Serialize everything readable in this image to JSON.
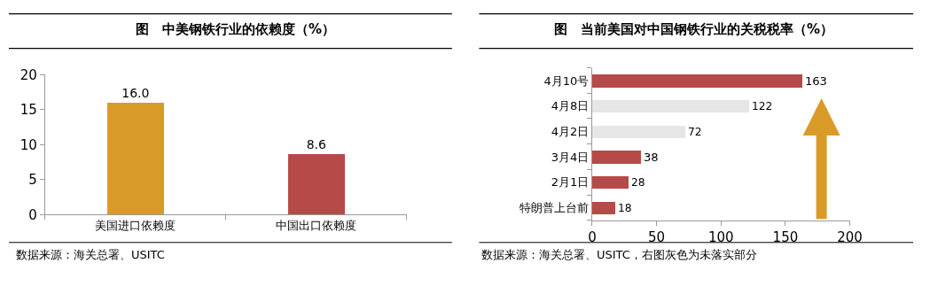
{
  "chart_data": [
    {
      "type": "bar",
      "title": "图　中美钢铁行业的依赖度（%）",
      "categories": [
        "美国进口依赖度",
        "中国出口依赖度"
      ],
      "values": [
        16.0,
        8.6
      ],
      "colors": [
        "#d99b28",
        "#b64a48"
      ],
      "value_labels": [
        "16.0",
        "8.6"
      ],
      "ylim": [
        0,
        20
      ],
      "yticks": [
        0,
        5,
        10,
        15,
        20
      ],
      "legend": false,
      "annotations": [
        "数据来源：海关总署、USITC"
      ]
    },
    {
      "type": "bar",
      "orientation": "horizontal",
      "title": "图　当前美国对中国钢铁行业的关税税率（%）",
      "categories": [
        "4月10号",
        "4月8日",
        "4月2日",
        "3月4日",
        "2月1日",
        "特朗普上台前"
      ],
      "values": [
        163,
        122,
        72,
        38,
        28,
        18
      ],
      "colors": [
        "#b64a48",
        "#e6e6e6",
        "#e6e6e6",
        "#b64a48",
        "#b64a48",
        "#b64a48"
      ],
      "data_labels": true,
      "xlim": [
        0,
        200
      ],
      "xticks": [
        0,
        50,
        100,
        150,
        200
      ],
      "legend": false,
      "annotations": [
        "数据来源：海关总署、USITC，右图灰色为未落实部分"
      ]
    }
  ]
}
